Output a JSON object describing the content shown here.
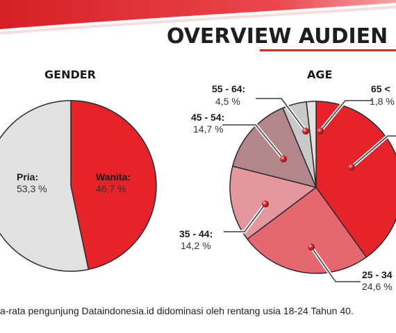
{
  "header": {
    "title": "OVERVIEW AUDIEN"
  },
  "caption": "a-rata pengunjung Dataindonesia.id didominasi oleh rentang usia 18-24 Tahun 40.",
  "colors": {
    "red": "#e52329",
    "light_gray": "#e1e1e1",
    "mid_gray": "#c9c9c9",
    "gray_light2": "#e2e2e2",
    "mauve": "#b2868a",
    "pink": "#e4979c",
    "salmon": "#e56770"
  },
  "chart_data": [
    {
      "type": "pie",
      "title": "GENDER",
      "slices": [
        {
          "name": "Wanita:",
          "value": 46.7,
          "value_label": "46,7 %",
          "color": "#e52329"
        },
        {
          "name": "Pria:",
          "value": 53.3,
          "value_label": "53,3 %",
          "color": "#e1e1e1"
        }
      ]
    },
    {
      "type": "pie",
      "title": "AGE",
      "slices": [
        {
          "name": "",
          "value": 40.0,
          "value_label": "",
          "color": "#e52329"
        },
        {
          "name": "25 - 34",
          "value": 24.6,
          "value_label": "24,6 %",
          "color": "#e56770"
        },
        {
          "name": "35 - 44:",
          "value": 14.2,
          "value_label": "14,2 %",
          "color": "#e4979c"
        },
        {
          "name": "45 - 54:",
          "value": 14.7,
          "value_label": "14,7 %",
          "color": "#b2868a"
        },
        {
          "name": "55 - 64:",
          "value": 4.5,
          "value_label": "4,5 %",
          "color": "#c9c9c9"
        },
        {
          "name": "65 <",
          "value": 1.8,
          "value_label": "1,8 %",
          "color": "#e2e2e2"
        }
      ]
    }
  ]
}
